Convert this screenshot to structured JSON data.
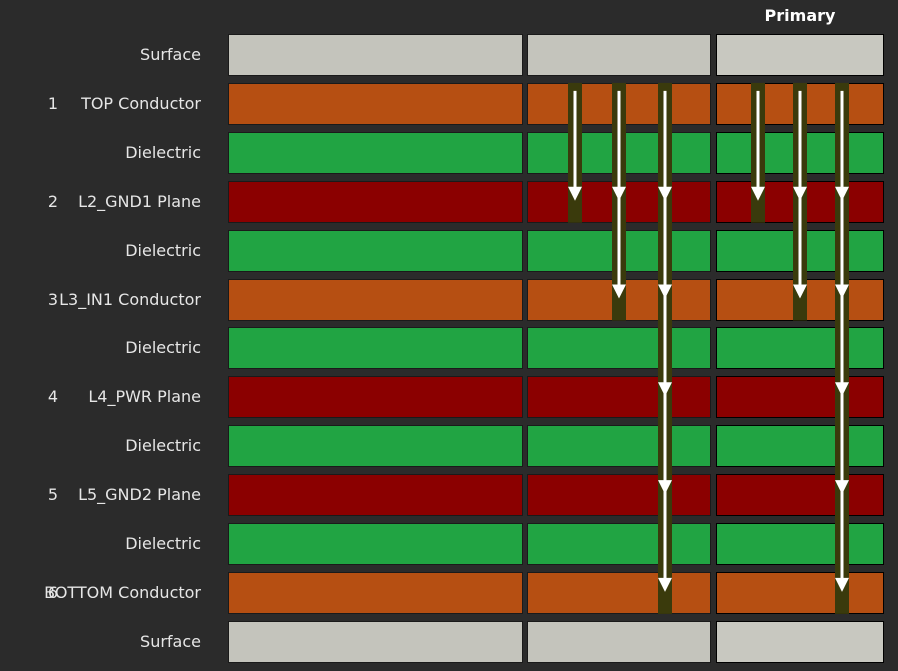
{
  "header": {
    "primary_label": "Primary"
  },
  "colors": {
    "surface": "#c4c4bc",
    "conductor": "#b64f12",
    "dielectric": "#21a443",
    "plane": "#8b0000",
    "via_barrel": "#3a3a0c",
    "via_arrow": "#ffffff"
  },
  "layers": [
    {
      "num": "",
      "name": "Surface",
      "type": "surface"
    },
    {
      "num": "1",
      "name": "TOP Conductor",
      "type": "conductor"
    },
    {
      "num": "",
      "name": "Dielectric",
      "type": "dielectric"
    },
    {
      "num": "2",
      "name": "L2_GND1 Plane",
      "type": "plane"
    },
    {
      "num": "",
      "name": "Dielectric",
      "type": "dielectric"
    },
    {
      "num": "3",
      "name": "L3_IN1 Conductor",
      "type": "conductor"
    },
    {
      "num": "",
      "name": "Dielectric",
      "type": "dielectric"
    },
    {
      "num": "4",
      "name": "L4_PWR Plane",
      "type": "plane"
    },
    {
      "num": "",
      "name": "Dielectric",
      "type": "dielectric"
    },
    {
      "num": "5",
      "name": "L5_GND2 Plane",
      "type": "plane"
    },
    {
      "num": "",
      "name": "Dielectric",
      "type": "dielectric"
    },
    {
      "num": "6",
      "name": "BOTTOM Conductor",
      "type": "conductor"
    },
    {
      "num": "",
      "name": "Surface",
      "type": "surface"
    }
  ],
  "vias": [
    {
      "column": "middle",
      "index": 1,
      "from_layer": 1,
      "to_layer": 3
    },
    {
      "column": "middle",
      "index": 2,
      "from_layer": 1,
      "to_layer": 5
    },
    {
      "column": "middle",
      "index": 3,
      "from_layer": 1,
      "to_layer": 11
    },
    {
      "column": "primary",
      "index": 1,
      "from_layer": 1,
      "to_layer": 3
    },
    {
      "column": "primary",
      "index": 2,
      "from_layer": 1,
      "to_layer": 5
    },
    {
      "column": "primary",
      "index": 3,
      "from_layer": 1,
      "to_layer": 11
    }
  ]
}
